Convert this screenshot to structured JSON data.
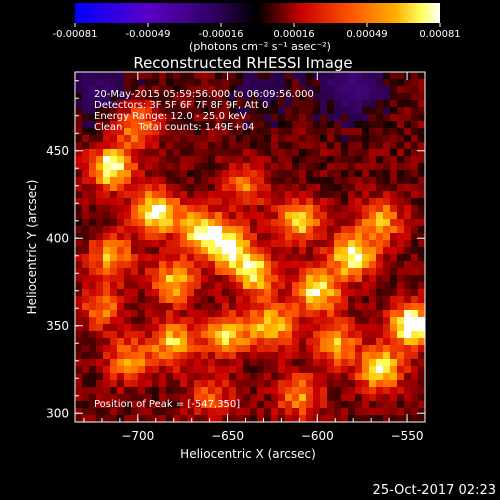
{
  "colorbar": {
    "ticks": [
      "-0.00081",
      "-0.00049",
      "-0.00016",
      "0.00016",
      "0.00049",
      "0.00081"
    ],
    "unit_label": "(photons cm⁻² s⁻¹ asec⁻²)",
    "range": [
      -0.00081,
      0.00081
    ]
  },
  "annotations": {
    "time_range": "20-May-2015 05:59:56.000 to 06:09:56.000",
    "detectors": "Detectors: 3F 5F 6F 7F 8F 9F, Att 0",
    "energy": "Energy Range: 12.0 - 25.0 keV",
    "method_counts": "Clean     Total counts: 1.49E+04",
    "peak": "Position of Peak = [-547,350]"
  },
  "footer": {
    "timestamp": "25-Oct-2017 02:23"
  },
  "chart_data": {
    "type": "heatmap",
    "title": "Reconstructed RHESSI Image",
    "xlabel": "Heliocentric X (arcsec)",
    "ylabel": "Heliocentric Y (arcsec)",
    "xlim": [
      -735,
      -540
    ],
    "ylim": [
      295,
      495
    ],
    "x_ticks": [
      -700,
      -650,
      -600,
      -550
    ],
    "x_tick_labels": [
      "−700",
      "−650",
      "−600",
      "−550"
    ],
    "y_ticks": [
      300,
      350,
      400,
      450
    ],
    "y_tick_labels": [
      "300",
      "350",
      "400",
      "450"
    ],
    "colormap": "RHESSI red-temperature (black→red→orange→yellow→white, negatives blue/purple)",
    "peak": [
      -547,
      350
    ],
    "blobs": [
      {
        "x": -715,
        "y": 440,
        "value": 0.0007
      },
      {
        "x": -690,
        "y": 415,
        "value": 0.00072
      },
      {
        "x": -665,
        "y": 405,
        "value": 0.0006
      },
      {
        "x": -650,
        "y": 395,
        "value": 0.00068
      },
      {
        "x": -680,
        "y": 375,
        "value": 0.00055
      },
      {
        "x": -635,
        "y": 380,
        "value": 0.00062
      },
      {
        "x": -610,
        "y": 410,
        "value": 0.00058
      },
      {
        "x": -600,
        "y": 370,
        "value": 0.00065
      },
      {
        "x": -580,
        "y": 390,
        "value": 0.0007
      },
      {
        "x": -565,
        "y": 410,
        "value": 0.0005
      },
      {
        "x": -547,
        "y": 350,
        "value": 0.00081
      },
      {
        "x": -565,
        "y": 325,
        "value": 0.00066
      },
      {
        "x": -590,
        "y": 340,
        "value": 0.00052
      },
      {
        "x": -625,
        "y": 350,
        "value": 0.0006
      },
      {
        "x": -650,
        "y": 345,
        "value": 0.00058
      },
      {
        "x": -680,
        "y": 340,
        "value": 0.00055
      },
      {
        "x": -705,
        "y": 330,
        "value": 0.00045
      },
      {
        "x": -715,
        "y": 390,
        "value": 0.0005
      },
      {
        "x": -720,
        "y": 360,
        "value": 0.0004
      },
      {
        "x": -640,
        "y": 430,
        "value": 0.0004
      },
      {
        "x": -610,
        "y": 310,
        "value": 0.00045
      },
      {
        "x": -660,
        "y": 310,
        "value": 0.00035
      },
      {
        "x": -700,
        "y": 465,
        "value": 0.00045
      }
    ],
    "negative_regions": [
      {
        "x": -580,
        "y": 487,
        "value": -0.00045
      },
      {
        "x": -630,
        "y": 485,
        "value": -0.0002
      },
      {
        "x": -722,
        "y": 485,
        "value": -0.0003
      }
    ]
  }
}
